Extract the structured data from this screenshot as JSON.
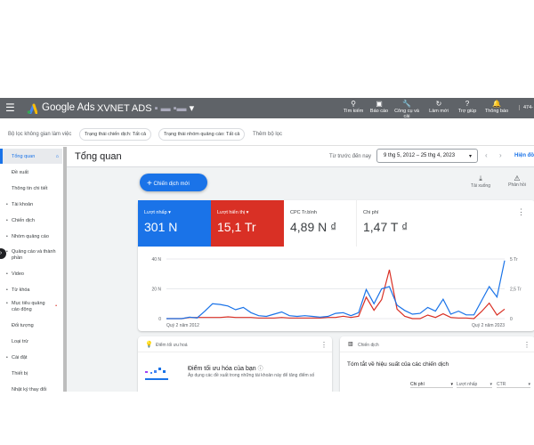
{
  "topbar": {
    "brand": "Google Ads",
    "account": "XVNET ADS",
    "account_id": "474-",
    "tools": [
      {
        "icon": "search-icon",
        "label": "Tìm kiếm"
      },
      {
        "icon": "report-icon",
        "label": "Báo cáo"
      },
      {
        "icon": "wrench-icon",
        "label": "Công cụ và cài"
      },
      {
        "icon": "refresh-icon",
        "label": "Làm mới"
      },
      {
        "icon": "help-icon",
        "label": "Trợ giúp"
      },
      {
        "icon": "bell-icon",
        "label": "Thông báo"
      }
    ]
  },
  "filters": {
    "workspace": "Bộ lọc không gian làm việc",
    "chips": [
      "Trạng thái chiến dịch: Tất cả",
      "Trạng thái nhóm quảng cáo: Tất cả"
    ],
    "add": "Thêm bộ lọc"
  },
  "sidebar": {
    "items": [
      {
        "label": "Tổng quan",
        "active": true
      },
      {
        "label": "Đề xuất"
      },
      {
        "label": "Thông tin chi tiết"
      },
      {
        "label": "Tài khoản",
        "bullet": true
      },
      {
        "label": "Chiến dịch",
        "bullet": true
      },
      {
        "label": "Nhóm quảng cáo",
        "bullet": true
      },
      {
        "label": "Quảng cáo và thành phần",
        "bullet": true
      },
      {
        "label": "Video",
        "bullet": true
      },
      {
        "label": "Từ khóa",
        "bullet": true
      },
      {
        "label": "Mục tiêu quảng cáo động",
        "bullet": true
      },
      {
        "label": "Đối tượng"
      },
      {
        "label": "Loại trừ"
      },
      {
        "label": "Cài đặt",
        "bullet": true
      },
      {
        "label": "Thiết bị"
      },
      {
        "label": "Nhật ký thay đổi"
      }
    ]
  },
  "header": {
    "title": "Tổng quan",
    "range_label": "Từ trước đến nay",
    "date_range": "9 thg 5, 2012 – 25 thg 4, 2023",
    "show": "Hiện đồ"
  },
  "actions": {
    "new_campaign": "Chiến dịch mới",
    "download": "Tải xuống",
    "feedback": "Phản hồi"
  },
  "metrics": [
    {
      "label": "Lượt nhấp",
      "value": "301 N",
      "color": "#1a73e8"
    },
    {
      "label": "Lượt hiển thị",
      "value": "15,1 Tr",
      "color": "#d93025"
    },
    {
      "label": "CPC Tr.bình",
      "value": "4,89 N ₫"
    },
    {
      "label": "Chi phí",
      "value": "1,47 T ₫"
    }
  ],
  "chart_data": {
    "type": "line",
    "x_tick_labels": [
      "Quý 2 năm 2012",
      "Quý 2 năm 2023"
    ],
    "y_left": {
      "ticks": [
        "0",
        "20 N",
        "40 N"
      ],
      "range": [
        0,
        40000
      ]
    },
    "y_right": {
      "ticks": [
        "0",
        "2,5 Tr",
        "5 Tr"
      ],
      "range": [
        0,
        5000000
      ]
    },
    "grid": true,
    "series": [
      {
        "name": "Lượt nhấp",
        "axis": "left",
        "color": "#1a73e8",
        "values": [
          0,
          0,
          0,
          1000,
          500,
          5000,
          10000,
          9500,
          8500,
          6000,
          7500,
          4000,
          2000,
          1500,
          3000,
          4500,
          2000,
          1500,
          2000,
          1500,
          1000,
          1500,
          3500,
          4000,
          2000,
          4000,
          19500,
          10000,
          20000,
          21500,
          9000,
          5500,
          3000,
          3500,
          7500,
          5000,
          13000,
          3000,
          5000,
          2500,
          2500,
          12000,
          21500,
          14500,
          39000
        ]
      },
      {
        "name": "Lượt hiển thị",
        "axis": "right",
        "color": "#d93025",
        "values": [
          0,
          0,
          0,
          100000,
          100000,
          100000,
          100000,
          100000,
          150000,
          100000,
          100000,
          100000,
          50000,
          50000,
          50000,
          100000,
          50000,
          50000,
          50000,
          50000,
          50000,
          100000,
          100000,
          200000,
          100000,
          200000,
          1800000,
          700000,
          1600000,
          4100000,
          800000,
          200000,
          0,
          0,
          300000,
          100000,
          400000,
          100000,
          50000,
          50000,
          0,
          600000,
          1300000,
          300000,
          800000
        ]
      }
    ]
  },
  "cards": {
    "opt": {
      "title": "Điểm tối ưu hoá",
      "heading": "Điểm tối ưu hóa của bạn",
      "desc": "Áp dụng các đề xuất trong những tài khoản này để tăng điểm số"
    },
    "camp": {
      "title": "Chiến dịch",
      "heading": "Tóm tắt về hiệu suất của các chiến dịch",
      "selects": [
        "Chi phí",
        "Lượt nhấp",
        "CTR"
      ]
    }
  }
}
